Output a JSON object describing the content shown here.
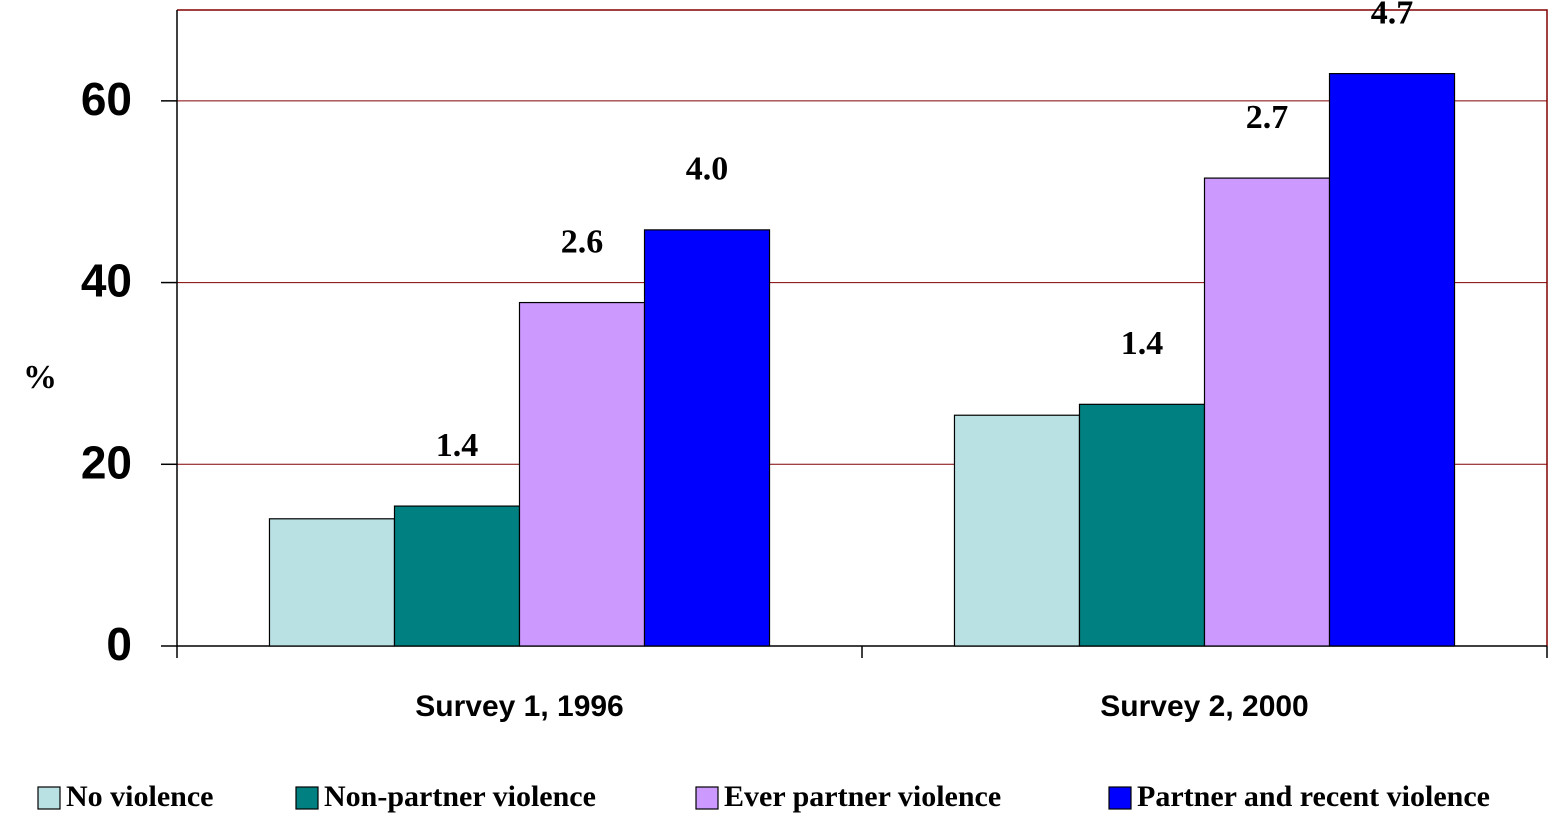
{
  "chart_data": {
    "type": "bar",
    "categories": [
      "Survey 1, 1996",
      "Survey 2, 2000"
    ],
    "ylabel": "%",
    "ylim": [
      0,
      70
    ],
    "yticks": [
      0,
      20,
      40,
      60
    ],
    "grid": true,
    "series": [
      {
        "name": "No violence",
        "color": "#b9e0e3",
        "values": [
          14,
          25.4
        ]
      },
      {
        "name": "Non-partner violence",
        "color": "#008080",
        "values": [
          15.4,
          26.6
        ],
        "labels": [
          "1.4",
          "1.4"
        ]
      },
      {
        "name": "Ever partner violence",
        "color": "#cc99ff",
        "values": [
          37.8,
          51.5
        ],
        "labels": [
          "2.6",
          "2.7"
        ]
      },
      {
        "name": "Partner and recent violence",
        "color": "#0000ff",
        "values": [
          45.8,
          63
        ],
        "labels": [
          "4.0",
          "4.7"
        ]
      }
    ]
  }
}
